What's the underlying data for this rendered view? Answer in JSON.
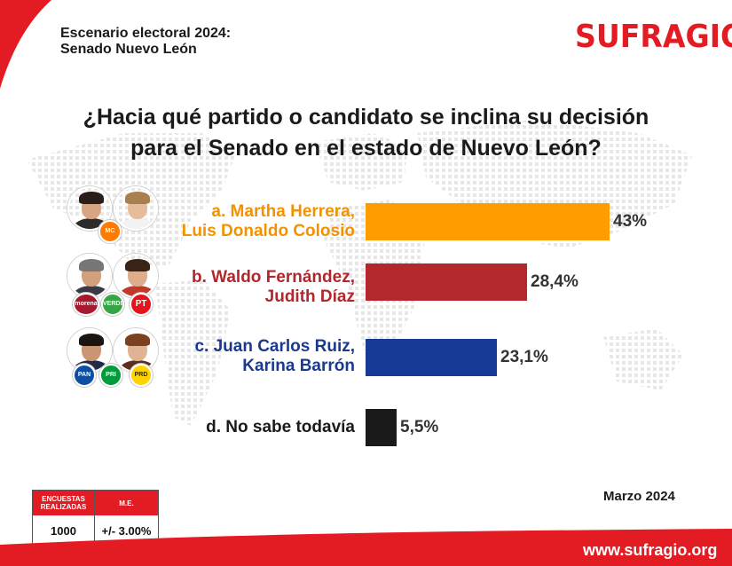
{
  "header": {
    "title_line1": "Escenario electoral 2024:",
    "title_line2": "Senado Nuevo León",
    "logo_text": "SUFRAGIO"
  },
  "question": {
    "line1": "¿Hacia qué partido o candidato se inclina su decisión",
    "line2": "para el Senado en el estado de Nuevo León?"
  },
  "candidates": [
    {
      "label_line1": "a. Martha Herrera,",
      "label_line2": "Luis Donaldo Colosio",
      "value_label": "43%",
      "label_color": "#f39200",
      "bar_color": "#ff9c00",
      "party_badges": [
        {
          "text": "MC",
          "color": "#ff7a00",
          "icon": "mc-logo-icon"
        }
      ]
    },
    {
      "label_line1": "b. Waldo Fernández,",
      "label_line2": "Judith Díaz",
      "value_label": "28,4%",
      "label_color": "#b0282d",
      "bar_color": "#b2282c",
      "party_badges": [
        {
          "text": "morena",
          "color": "#a6192e",
          "icon": "morena-logo-icon"
        },
        {
          "text": "VERDE",
          "color": "#35a545",
          "icon": "verde-logo-icon"
        },
        {
          "text": "PT",
          "color": "#e3141b",
          "icon": "pt-logo-icon"
        }
      ]
    },
    {
      "label_line1": "c. Juan Carlos Ruiz,",
      "label_line2": "Karina Barrón",
      "value_label": "23,1%",
      "label_color": "#1a3a8f",
      "bar_color": "#163a96",
      "party_badges": [
        {
          "text": "PAN",
          "color": "#0b4ea2",
          "icon": "pan-logo-icon"
        },
        {
          "text": "PRI",
          "color": "#009b3a",
          "icon": "pri-logo-icon"
        },
        {
          "text": "PRD",
          "color": "#ffd400",
          "icon": "prd-logo-icon"
        }
      ]
    },
    {
      "label_line1": "",
      "label_line2": "d. No sabe todavía",
      "value_label": "5,5%",
      "label_color": "#1a1a1a",
      "bar_color": "#1a1a1a",
      "party_badges": []
    }
  ],
  "chart_data": {
    "type": "bar",
    "orientation": "horizontal",
    "title": "¿Hacia qué partido o candidato se inclina su decisión para el Senado en el estado de Nuevo León?",
    "categories": [
      "a. Martha Herrera, Luis Donaldo Colosio",
      "b. Waldo Fernández, Judith Díaz",
      "c. Juan Carlos Ruiz, Karina Barrón",
      "d. No sabe todavía"
    ],
    "values": [
      43,
      28.4,
      23.1,
      5.5
    ],
    "value_labels": [
      "43%",
      "28,4%",
      "23,1%",
      "5,5%"
    ],
    "colors": [
      "#ff9c00",
      "#b2282c",
      "#163a96",
      "#1a1a1a"
    ],
    "xlim": [
      0,
      43
    ],
    "grid": false,
    "legend": "none"
  },
  "footer": {
    "table": {
      "col1_header": "ENCUESTAS REALIZADAS",
      "col2_header": "M.E.",
      "col1_value": "1000",
      "col2_value": "+/- 3.00%"
    },
    "date": "Marzo 2024",
    "website": "www.sufragio.org"
  },
  "colors": {
    "brand_red": "#e31b23"
  }
}
